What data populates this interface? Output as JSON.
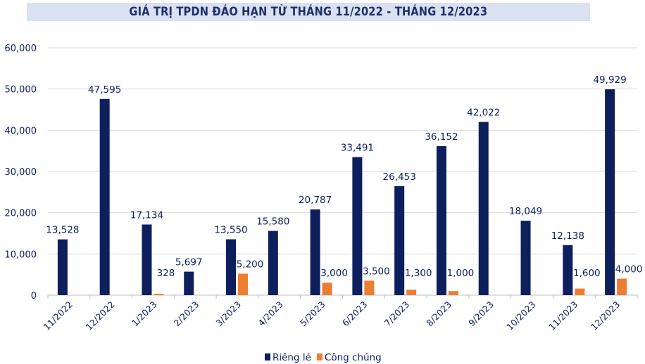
{
  "chart_data": {
    "type": "bar",
    "title": "GIÁ TRỊ TPDN ĐÁO HẠN TỪ THÁNG 11/2022 - THÁNG 12/2023",
    "xlabel": "",
    "ylabel": "",
    "ylim": [
      0,
      60000
    ],
    "yticks": [
      0,
      10000,
      20000,
      30000,
      40000,
      50000,
      60000
    ],
    "ytick_labels": [
      "0",
      "10,000",
      "20,000",
      "30,000",
      "40,000",
      "50,000",
      "60,000"
    ],
    "grid": true,
    "legend_position": "bottom",
    "categories": [
      "11/2022",
      "12/2022",
      "1/2023",
      "2/2023",
      "3/2023",
      "4/2023",
      "5/2023",
      "6/2023",
      "7/2023",
      "8/2023",
      "9/2023",
      "10/2023",
      "11/2023",
      "12/2023"
    ],
    "series": [
      {
        "name": "Riêng lẻ",
        "color": "#0d1f5c",
        "values": [
          13528,
          47595,
          17134,
          5697,
          13550,
          15580,
          20787,
          33491,
          26453,
          36152,
          42022,
          18049,
          12138,
          49929
        ],
        "labels": [
          "13,528",
          "47,595",
          "17,134",
          "5,697",
          "13,550",
          "15,580",
          "20,787",
          "33,491",
          "26,453",
          "36,152",
          "42,022",
          "18,049",
          "12,138",
          "49,929"
        ]
      },
      {
        "name": "Công chúng",
        "color": "#ed7d31",
        "values": [
          null,
          null,
          328,
          null,
          5200,
          null,
          3000,
          3500,
          1300,
          1000,
          null,
          null,
          1600,
          4000
        ],
        "labels": [
          null,
          null,
          "328",
          null,
          "5,200",
          null,
          "3,000",
          "3,500",
          "1,300",
          "1,000",
          null,
          null,
          "1,600",
          "4,000"
        ]
      }
    ]
  }
}
